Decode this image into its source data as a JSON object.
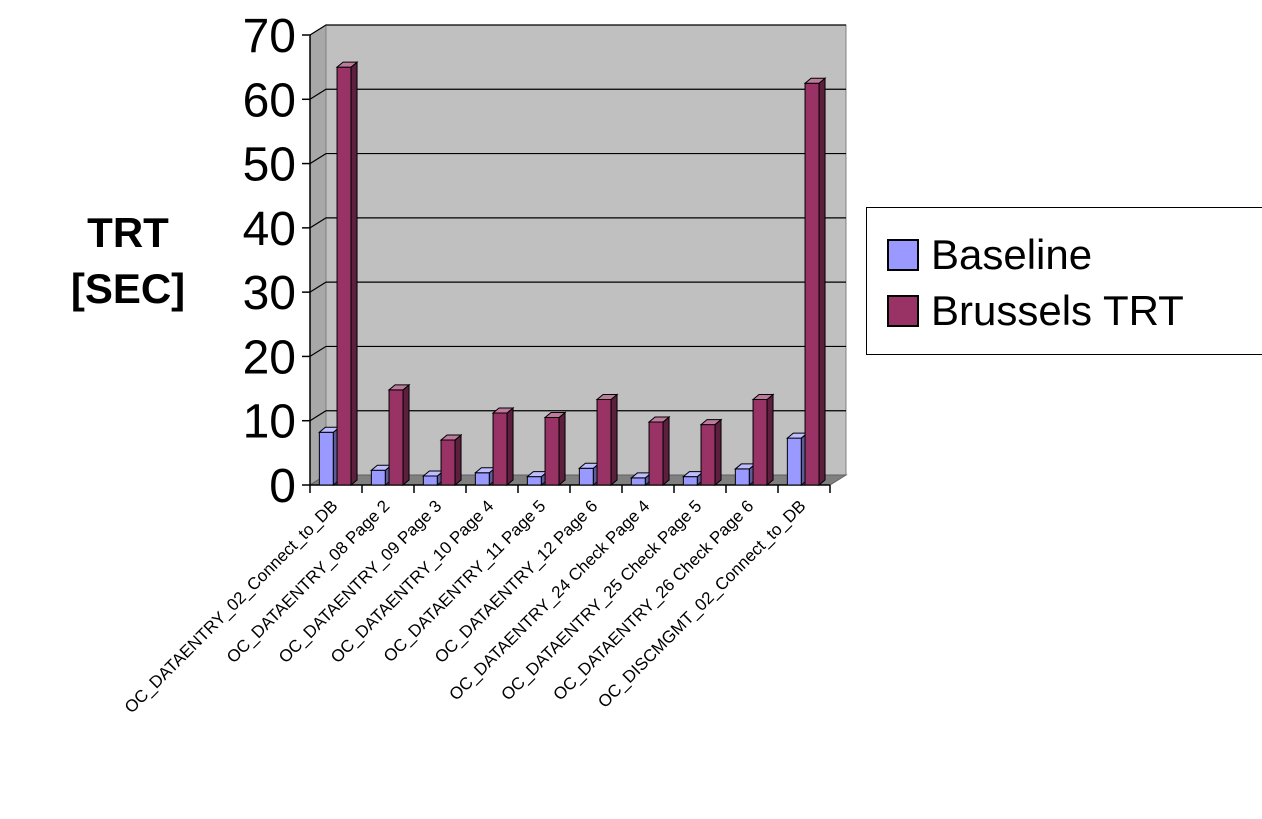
{
  "chart_data": {
    "type": "bar",
    "three_d": true,
    "ylabel_lines": [
      "TRT",
      "[SEC]"
    ],
    "ylim": [
      0,
      70
    ],
    "ytick_step": 10,
    "grid": "horizontal",
    "legend_position": "right",
    "categories": [
      "OC_DATAENTRY_02_Connect_to_DB",
      "OC_DATAENTRY_08 Page 2",
      "OC_DATAENTRY_09 Page 3",
      "OC_DATAENTRY_10 Page 4",
      "OC_DATAENTRY_11 Page 5",
      "OC_DATAENTRY_12 Page 6",
      "OC_DATAENTRY_24 Check Page 4",
      "OC_DATAENTRY_25 Check Page 5",
      "OC_DATAENTRY_26 Check Page 6",
      "OC_DISCMGMT_02_Connect_to_DB"
    ],
    "series": [
      {
        "name": "Baseline",
        "color": "#9999ff",
        "values": [
          8.2,
          2.3,
          1.4,
          1.9,
          1.3,
          2.6,
          1.1,
          1.3,
          2.5,
          7.3
        ]
      },
      {
        "name": "Brussels TRT",
        "color": "#993366",
        "values": [
          65.0,
          14.8,
          7.0,
          11.2,
          10.5,
          13.3,
          9.8,
          9.4,
          13.3,
          62.5
        ]
      }
    ]
  }
}
